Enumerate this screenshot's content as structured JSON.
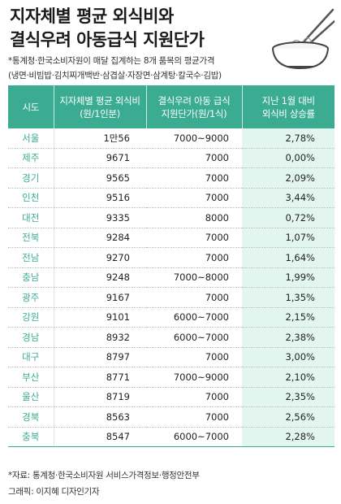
{
  "title": {
    "line1": "지자체별 평균 외식비와",
    "line2": "결식우려 아동급식 지원단가"
  },
  "subtitle": {
    "line1": "*통계청·한국소비자원이 매달 집계하는 8개 품목의 평균가격",
    "line2": "(냉면·비빔밥·김치찌개백반·삼겹살·자장면·삼계탕·칼국수·김밥)"
  },
  "illustration": {
    "icon": "noodle-bowl-with-chopsticks-icon"
  },
  "table": {
    "headers": [
      "시도",
      "지자체별 평균 외식비\n(원/1인분)",
      "결식우려 아동 급식\n지원단가(원/1식)",
      "지난 1월 대비\n외식비 상승률"
    ],
    "rows": [
      {
        "region": "서울",
        "spend": "1만56",
        "meal": "7000~9000",
        "rate": "2,78%"
      },
      {
        "region": "제주",
        "spend": "9671",
        "meal": "7000",
        "rate": "0,00%"
      },
      {
        "region": "경기",
        "spend": "9565",
        "meal": "7000",
        "rate": "2,09%"
      },
      {
        "region": "인천",
        "spend": "9516",
        "meal": "7000",
        "rate": "3,44%"
      },
      {
        "region": "대전",
        "spend": "9335",
        "meal": "8000",
        "rate": "0,72%"
      },
      {
        "region": "전북",
        "spend": "9284",
        "meal": "7000",
        "rate": "1,07%"
      },
      {
        "region": "전남",
        "spend": "9270",
        "meal": "7000",
        "rate": "1,64%"
      },
      {
        "region": "충남",
        "spend": "9248",
        "meal": "7000~8000",
        "rate": "1,99%"
      },
      {
        "region": "광주",
        "spend": "9167",
        "meal": "7000",
        "rate": "1,35%"
      },
      {
        "region": "강원",
        "spend": "9101",
        "meal": "6000~7000",
        "rate": "2,15%"
      },
      {
        "region": "경남",
        "spend": "8932",
        "meal": "6000~7000",
        "rate": "2,38%"
      },
      {
        "region": "대구",
        "spend": "8797",
        "meal": "7000",
        "rate": "3,00%"
      },
      {
        "region": "부산",
        "spend": "8771",
        "meal": "7000~9000",
        "rate": "2,10%"
      },
      {
        "region": "울산",
        "spend": "8719",
        "meal": "7000",
        "rate": "2,35%"
      },
      {
        "region": "경북",
        "spend": "8563",
        "meal": "7000",
        "rate": "2,56%"
      },
      {
        "region": "충북",
        "spend": "8547",
        "meal": "6000~7000",
        "rate": "2,28%"
      }
    ]
  },
  "footer": {
    "source": "*자료: 통계청·한국소비자원 서비스가격정보·행정안전부",
    "credit": "그래픽: 이지혜 디자인기자"
  },
  "colors": {
    "header_bg": "#3bab92",
    "region_text": "#3bab92",
    "rate_column_bg": "#e3f5ef"
  }
}
